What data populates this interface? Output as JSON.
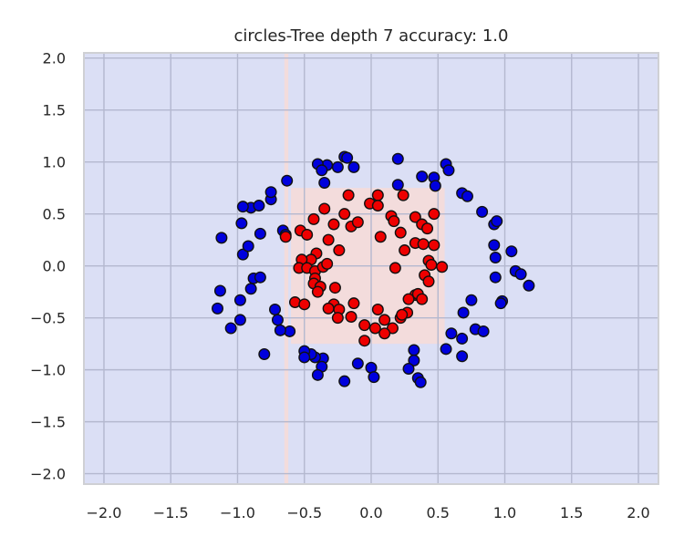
{
  "chart_data": {
    "type": "scatter",
    "title": "circles-Tree depth 7 accuracy: 1.0",
    "xlabel": "",
    "ylabel": "",
    "xlim": [
      -2.15,
      2.15
    ],
    "ylim": [
      -2.1,
      2.05
    ],
    "xticks": [
      -2.0,
      -1.5,
      -1.0,
      -0.5,
      0.0,
      0.5,
      1.0,
      1.5,
      2.0
    ],
    "xtick_labels": [
      "−2.0",
      "−1.5",
      "−1.0",
      "−0.5",
      "0.0",
      "0.5",
      "1.0",
      "1.5",
      "2.0"
    ],
    "yticks": [
      2.0,
      1.5,
      1.0,
      0.5,
      0.0,
      -0.5,
      -1.0,
      -1.5,
      -2.0
    ],
    "ytick_labels": [
      "2.0",
      "1.5",
      "1.0",
      "0.5",
      "0.0",
      "−0.5",
      "−1.0",
      "−1.5",
      "−2.0"
    ],
    "grid": true,
    "colors": {
      "background_region": "#dbdff5",
      "decision_region": "#f3dcdc",
      "grid": "#b4b8cf",
      "class_outer": "#0000dd",
      "class_inner": "#ee0000",
      "marker_edge": "#111111"
    },
    "decision_regions": [
      {
        "x": [
          -0.6,
          0.55
        ],
        "y": [
          -0.75,
          0.75
        ]
      },
      {
        "x": [
          -0.65,
          -0.62
        ],
        "y": [
          -2.1,
          2.05
        ]
      }
    ],
    "series": [
      {
        "class": 0,
        "color": "#0000dd",
        "points": [
          [
            -0.25,
            0.95
          ],
          [
            -0.33,
            0.97
          ],
          [
            -0.2,
            1.05
          ],
          [
            -0.18,
            1.04
          ],
          [
            -0.13,
            0.95
          ],
          [
            -0.4,
            0.98
          ],
          [
            -0.37,
            0.92
          ],
          [
            -0.35,
            0.8
          ],
          [
            -0.63,
            0.82
          ],
          [
            0.2,
            1.03
          ],
          [
            0.38,
            0.86
          ],
          [
            0.47,
            0.85
          ],
          [
            0.56,
            0.98
          ],
          [
            0.58,
            0.92
          ],
          [
            0.2,
            0.78
          ],
          [
            0.48,
            0.77
          ],
          [
            0.68,
            0.7
          ],
          [
            0.72,
            0.67
          ],
          [
            0.83,
            0.52
          ],
          [
            0.92,
            0.4
          ],
          [
            0.94,
            0.43
          ],
          [
            0.92,
            0.2
          ],
          [
            0.93,
            0.08
          ],
          [
            1.05,
            0.14
          ],
          [
            1.08,
            -0.05
          ],
          [
            1.12,
            -0.08
          ],
          [
            0.93,
            -0.11
          ],
          [
            1.18,
            -0.19
          ],
          [
            0.98,
            -0.34
          ],
          [
            0.97,
            -0.36
          ],
          [
            0.75,
            -0.33
          ],
          [
            0.69,
            -0.45
          ],
          [
            0.78,
            -0.61
          ],
          [
            0.84,
            -0.63
          ],
          [
            0.6,
            -0.65
          ],
          [
            0.68,
            -0.7
          ],
          [
            0.56,
            -0.8
          ],
          [
            0.68,
            -0.87
          ],
          [
            0.32,
            -0.81
          ],
          [
            0.32,
            -0.91
          ],
          [
            0.28,
            -0.99
          ],
          [
            0.35,
            -1.08
          ],
          [
            0.37,
            -1.12
          ],
          [
            0.0,
            -0.98
          ],
          [
            0.02,
            -1.07
          ],
          [
            -0.1,
            -0.94
          ],
          [
            -0.2,
            -1.11
          ],
          [
            -0.36,
            -0.89
          ],
          [
            -0.37,
            -0.97
          ],
          [
            -0.4,
            -1.05
          ],
          [
            -0.42,
            -0.88
          ],
          [
            -0.45,
            -0.85
          ],
          [
            -0.5,
            -0.82
          ],
          [
            -0.5,
            -0.88
          ],
          [
            -0.72,
            -0.42
          ],
          [
            -0.7,
            -0.52
          ],
          [
            -0.61,
            -0.63
          ],
          [
            -0.8,
            -0.85
          ],
          [
            -0.98,
            -0.52
          ],
          [
            -0.98,
            -0.33
          ],
          [
            -1.05,
            -0.6
          ],
          [
            -1.13,
            -0.24
          ],
          [
            -1.15,
            -0.41
          ],
          [
            -0.9,
            -0.22
          ],
          [
            -0.88,
            -0.12
          ],
          [
            -0.83,
            -0.11
          ],
          [
            -0.96,
            0.11
          ],
          [
            -0.92,
            0.19
          ],
          [
            -0.97,
            0.41
          ],
          [
            -0.83,
            0.31
          ],
          [
            -0.9,
            0.56
          ],
          [
            -0.96,
            0.57
          ],
          [
            -0.84,
            0.58
          ],
          [
            -0.75,
            0.64
          ],
          [
            -0.75,
            0.71
          ],
          [
            -0.66,
            0.34
          ],
          [
            -0.64,
            0.3
          ],
          [
            -1.12,
            0.27
          ],
          [
            -0.68,
            -0.62
          ]
        ]
      },
      {
        "class": 1,
        "color": "#ee0000",
        "points": [
          [
            -0.17,
            0.68
          ],
          [
            0.05,
            0.68
          ],
          [
            0.24,
            0.68
          ],
          [
            -0.01,
            0.6
          ],
          [
            0.05,
            0.58
          ],
          [
            -0.2,
            0.5
          ],
          [
            -0.35,
            0.55
          ],
          [
            -0.43,
            0.45
          ],
          [
            -0.28,
            0.4
          ],
          [
            -0.15,
            0.38
          ],
          [
            -0.1,
            0.42
          ],
          [
            0.15,
            0.48
          ],
          [
            0.17,
            0.43
          ],
          [
            0.33,
            0.47
          ],
          [
            0.38,
            0.4
          ],
          [
            0.42,
            0.36
          ],
          [
            0.47,
            0.5
          ],
          [
            0.22,
            0.32
          ],
          [
            -0.32,
            0.25
          ],
          [
            -0.53,
            0.34
          ],
          [
            -0.48,
            0.3
          ],
          [
            -0.64,
            0.28
          ],
          [
            0.33,
            0.22
          ],
          [
            0.39,
            0.21
          ],
          [
            0.47,
            0.2
          ],
          [
            -0.24,
            0.15
          ],
          [
            -0.41,
            0.12
          ],
          [
            0.25,
            0.15
          ],
          [
            -0.45,
            0.06
          ],
          [
            -0.52,
            0.06
          ],
          [
            0.43,
            0.05
          ],
          [
            0.45,
            0.01
          ],
          [
            0.53,
            -0.01
          ],
          [
            0.07,
            0.28
          ],
          [
            -0.54,
            -0.02
          ],
          [
            -0.48,
            -0.02
          ],
          [
            -0.42,
            -0.05
          ],
          [
            -0.36,
            -0.01
          ],
          [
            -0.33,
            0.02
          ],
          [
            0.18,
            -0.02
          ],
          [
            0.4,
            -0.09
          ],
          [
            0.43,
            -0.15
          ],
          [
            -0.42,
            -0.12
          ],
          [
            -0.43,
            -0.17
          ],
          [
            -0.38,
            -0.2
          ],
          [
            -0.4,
            -0.25
          ],
          [
            0.33,
            -0.28
          ],
          [
            0.28,
            -0.32
          ],
          [
            -0.27,
            -0.21
          ],
          [
            -0.57,
            -0.35
          ],
          [
            -0.5,
            -0.37
          ],
          [
            -0.28,
            -0.37
          ],
          [
            0.35,
            -0.27
          ],
          [
            0.38,
            -0.32
          ],
          [
            -0.13,
            -0.36
          ],
          [
            -0.24,
            -0.42
          ],
          [
            -0.32,
            -0.41
          ],
          [
            0.05,
            -0.42
          ],
          [
            -0.25,
            -0.5
          ],
          [
            0.1,
            -0.52
          ],
          [
            0.22,
            -0.5
          ],
          [
            0.27,
            -0.45
          ],
          [
            0.16,
            -0.6
          ],
          [
            -0.05,
            -0.57
          ],
          [
            0.03,
            -0.6
          ],
          [
            0.1,
            -0.65
          ],
          [
            -0.05,
            -0.72
          ],
          [
            0.23,
            -0.47
          ],
          [
            -0.15,
            -0.49
          ]
        ]
      }
    ]
  }
}
